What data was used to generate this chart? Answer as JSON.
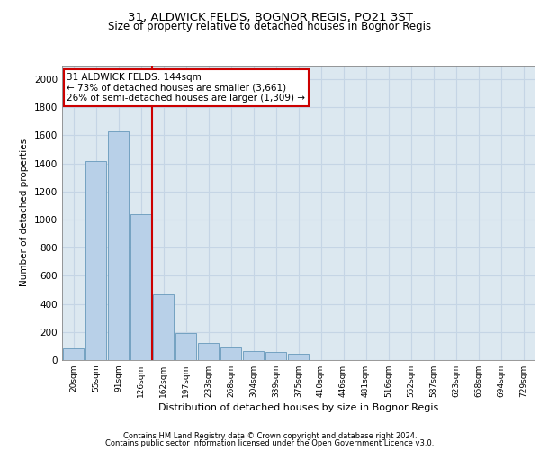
{
  "title_line1": "31, ALDWICK FELDS, BOGNOR REGIS, PO21 3ST",
  "title_line2": "Size of property relative to detached houses in Bognor Regis",
  "xlabel": "Distribution of detached houses by size in Bognor Regis",
  "ylabel": "Number of detached properties",
  "categories": [
    "20sqm",
    "55sqm",
    "91sqm",
    "126sqm",
    "162sqm",
    "197sqm",
    "233sqm",
    "268sqm",
    "304sqm",
    "339sqm",
    "375sqm",
    "410sqm",
    "446sqm",
    "481sqm",
    "516sqm",
    "552sqm",
    "587sqm",
    "623sqm",
    "658sqm",
    "694sqm",
    "729sqm"
  ],
  "values": [
    85,
    1420,
    1630,
    1040,
    465,
    195,
    125,
    90,
    65,
    55,
    45,
    0,
    0,
    0,
    0,
    0,
    0,
    0,
    0,
    0,
    0
  ],
  "bar_color": "#b8d0e8",
  "bar_edge_color": "#6699bb",
  "grid_color": "#c5d5e5",
  "background_color": "#dce8f0",
  "vline_color": "#cc0000",
  "annotation_text": "31 ALDWICK FELDS: 144sqm\n← 73% of detached houses are smaller (3,661)\n26% of semi-detached houses are larger (1,309) →",
  "annotation_box_color": "#ffffff",
  "annotation_box_edge": "#cc0000",
  "footer_line1": "Contains HM Land Registry data © Crown copyright and database right 2024.",
  "footer_line2": "Contains public sector information licensed under the Open Government Licence v3.0.",
  "ylim": [
    0,
    2100
  ],
  "yticks": [
    0,
    200,
    400,
    600,
    800,
    1000,
    1200,
    1400,
    1600,
    1800,
    2000
  ]
}
